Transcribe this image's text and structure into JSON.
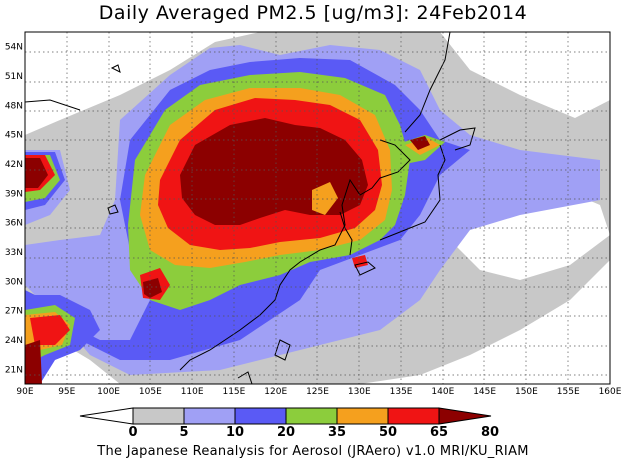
{
  "title": "Daily Averaged PM2.5 [ug/m3]: 24Feb2014",
  "footer": "The Japanese Reanalysis for Aerosol (JRAero) v1.0 MRI/KU_RIAM",
  "map": {
    "lon_range": [
      90,
      160
    ],
    "lat_range": [
      19.5,
      55.5
    ],
    "lon_ticks": [
      "90E",
      "95E",
      "100E",
      "105E",
      "110E",
      "115E",
      "120E",
      "125E",
      "130E",
      "135E",
      "140E",
      "145E",
      "150E",
      "155E",
      "160E"
    ],
    "lat_ticks": [
      "21N",
      "24N",
      "27N",
      "30N",
      "33N",
      "36N",
      "39N",
      "42N",
      "45N",
      "48N",
      "51N",
      "54N"
    ],
    "grid": "dotted"
  },
  "colorbar": {
    "levels": [
      "0",
      "5",
      "10",
      "20",
      "35",
      "50",
      "65",
      "80"
    ],
    "colors": [
      "#ffffff",
      "#c8c8c8",
      "#a0a0f5",
      "#5a5af5",
      "#8ccd3c",
      "#f5a01e",
      "#f01414",
      "#8c0000"
    ]
  }
}
